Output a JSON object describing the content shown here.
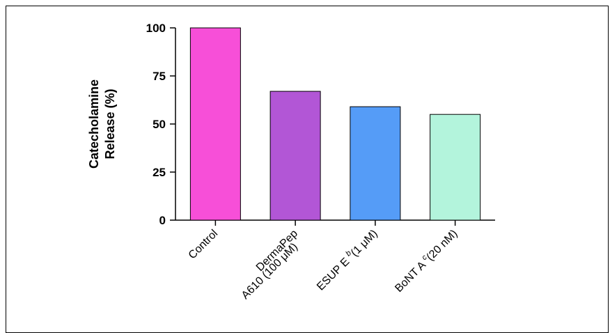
{
  "chart_data": {
    "type": "bar",
    "title": "",
    "xlabel": "",
    "ylabel_lines": [
      "Catecholamine",
      "Release (%)"
    ],
    "ylim": [
      0,
      100
    ],
    "yticks": [
      "0",
      "25",
      "50",
      "75",
      "100"
    ],
    "ytick_values": [
      0,
      25,
      50,
      75,
      100
    ],
    "categories": [
      {
        "lines": [
          "Control"
        ]
      },
      {
        "lines": [
          "DermaPep",
          "A610 (100 μM)"
        ]
      },
      {
        "lines": [
          "ESUP E",
          "b",
          "(1 μM)"
        ],
        "sup_after": 0
      },
      {
        "lines": [
          "BoNT A",
          "c",
          "(20 nM)"
        ],
        "sup_after": 0
      }
    ],
    "values": [
      100,
      67,
      59,
      55
    ],
    "colors": [
      "#f74fd8",
      "#b256d6",
      "#559cf7",
      "#b3f4dc"
    ],
    "grid": false,
    "legend": "none"
  }
}
